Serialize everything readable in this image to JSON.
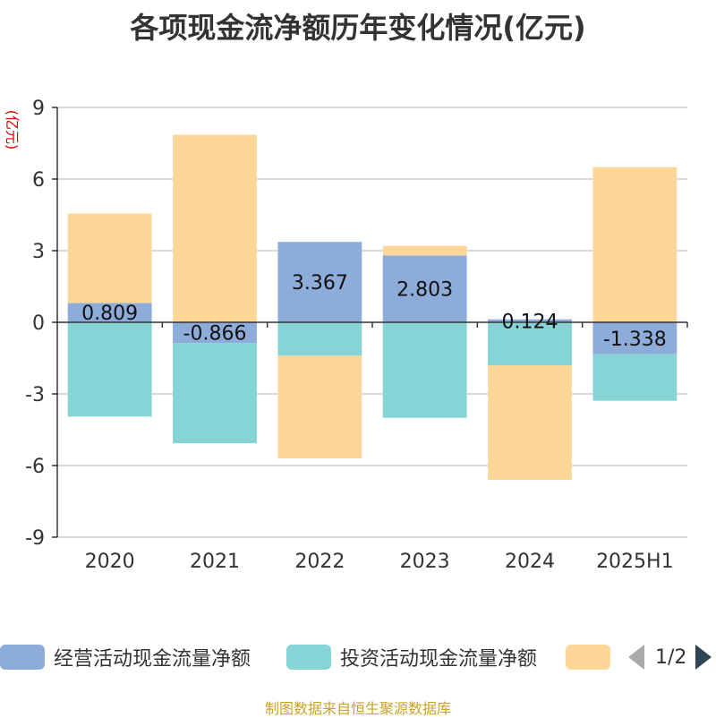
{
  "chart_data": {
    "type": "bar",
    "stacked": true,
    "title": "各项现金流净额历年变化情况(亿元)",
    "ylabel": "(亿元)",
    "categories": [
      "2020",
      "2021",
      "2022",
      "2023",
      "2024",
      "2025H1"
    ],
    "ylim": [
      -9,
      9
    ],
    "yticks": [
      9,
      6,
      3,
      0,
      -3,
      -6,
      -9
    ],
    "series": [
      {
        "name": "经营活动现金流量净额",
        "color": "#8eacda",
        "values": [
          0.809,
          -0.866,
          3.367,
          2.803,
          0.124,
          -1.338
        ],
        "labels": [
          "0.809",
          "-0.866",
          "3.367",
          "2.803",
          "0.124",
          "-1.338"
        ]
      },
      {
        "name": "投资活动现金流量净额",
        "color": "#86d4d6",
        "values": [
          -3.95,
          -4.2,
          -1.4,
          -4.0,
          -1.8,
          -1.95
        ]
      },
      {
        "name": "",
        "color": "#fdd797",
        "values": [
          3.75,
          7.85,
          -4.3,
          0.4,
          -4.8,
          6.5
        ]
      }
    ],
    "legend": {
      "placement": "bottom",
      "page": "1/2"
    },
    "grid": true,
    "source": "制图数据来自恒生聚源数据库"
  }
}
